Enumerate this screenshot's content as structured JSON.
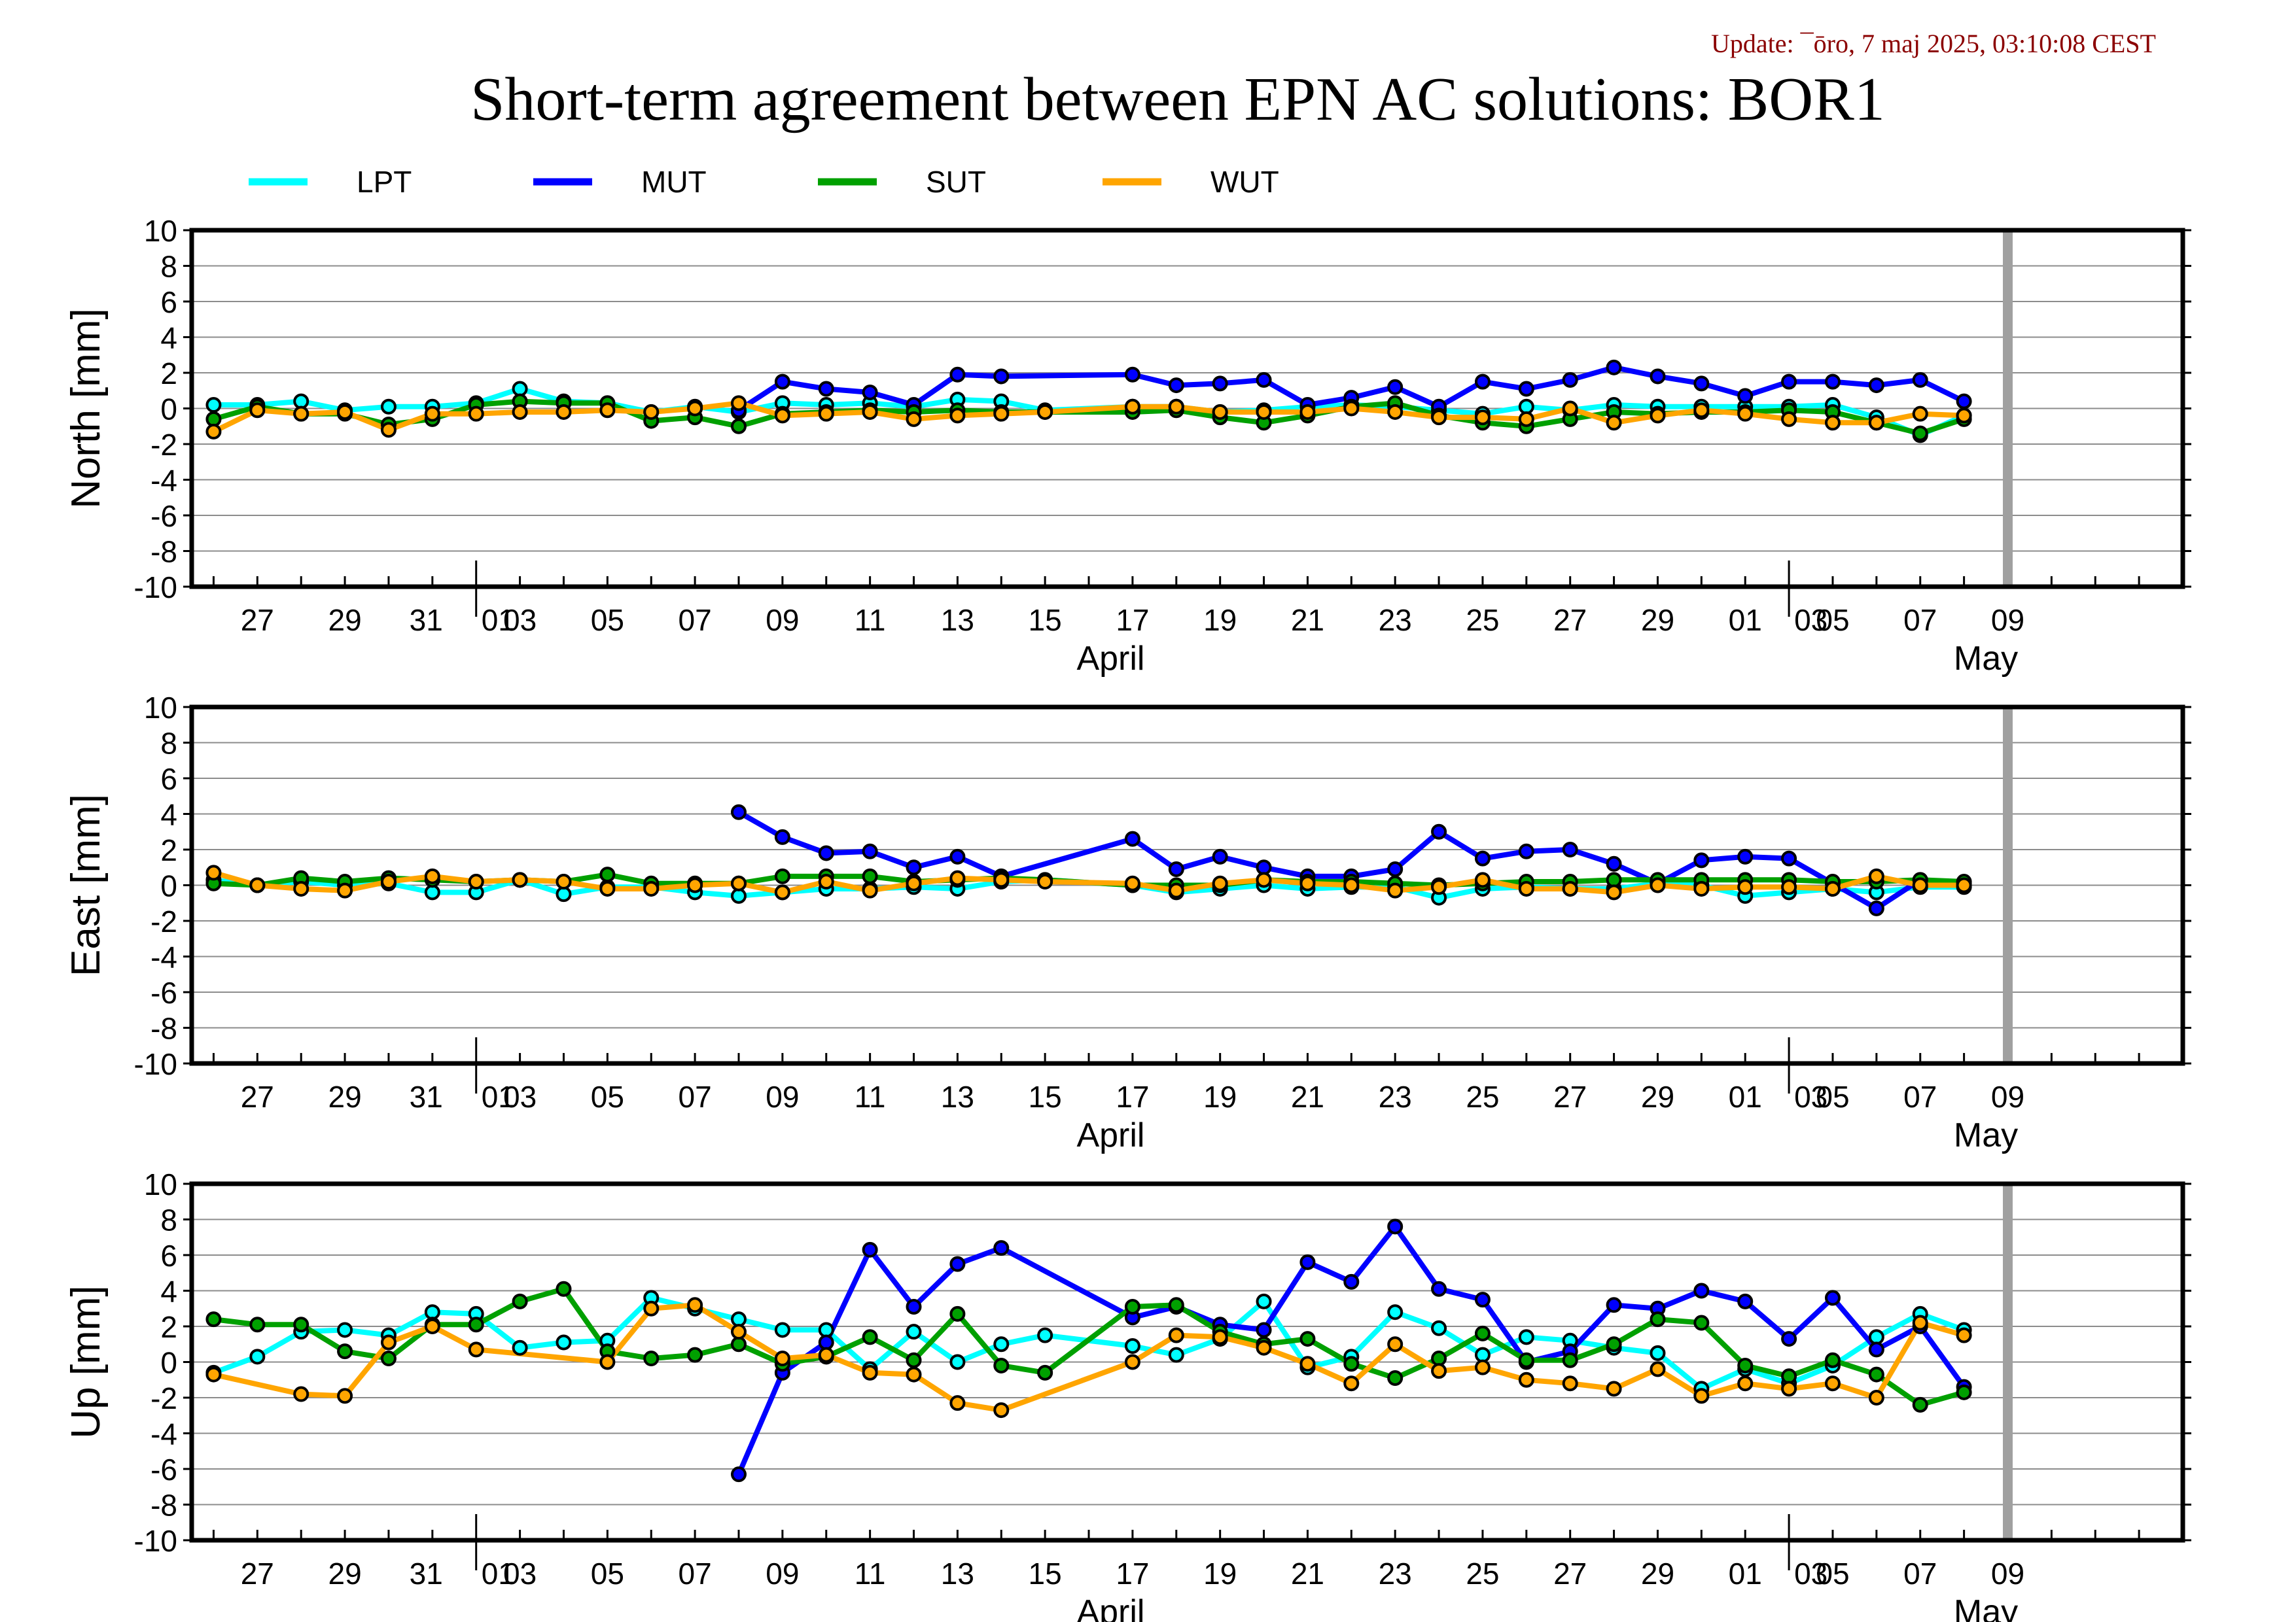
{
  "update": "Update: ¯ōro, 7 maj 2025, 03:10:08 CEST",
  "title": "Short-term agreement between EPN AC solutions: BOR1",
  "colors": {
    "LPT": "#00ffff",
    "MUT": "#0000ff",
    "SUT": "#00a000",
    "WUT": "#ffa500",
    "vline": "#a0a0a0",
    "update_text": "#8b0000"
  },
  "legend": [
    {
      "name": "LPT"
    },
    {
      "name": "MUT"
    },
    {
      "name": "SUT"
    },
    {
      "name": "WUT"
    }
  ],
  "chart_data": [
    {
      "type": "line",
      "ylabel": "North [mm]",
      "ylim": [
        -10,
        10
      ],
      "yticks": [
        10,
        8,
        6,
        4,
        2,
        0,
        -2,
        -4,
        -6,
        -8,
        -10
      ],
      "xlim": [
        "2025-03-25T12",
        "2025-05-10"
      ],
      "xticks": [
        "27",
        "29",
        "31",
        "01",
        "03",
        "05",
        "07",
        "09",
        "11",
        "13",
        "15",
        "17",
        "19",
        "21",
        "23",
        "25",
        "27",
        "29",
        "01",
        "03",
        "05",
        "07",
        "09"
      ],
      "months": [
        "April",
        "May"
      ],
      "grid": true,
      "marker_line": "2025-05-06",
      "x": [
        "2025-03-26",
        "2025-03-27",
        "2025-03-28",
        "2025-03-29",
        "2025-03-30",
        "2025-03-31",
        "2025-04-01",
        "2025-04-02",
        "2025-04-03",
        "2025-04-04",
        "2025-04-05",
        "2025-04-06",
        "2025-04-07",
        "2025-04-08",
        "2025-04-09",
        "2025-04-10",
        "2025-04-11",
        "2025-04-12",
        "2025-04-13",
        "2025-04-14",
        "2025-04-16",
        "2025-04-17",
        "2025-04-18",
        "2025-04-19",
        "2025-04-20",
        "2025-04-21",
        "2025-04-22",
        "2025-04-23",
        "2025-04-24",
        "2025-04-25",
        "2025-04-26",
        "2025-04-27",
        "2025-04-28",
        "2025-04-29",
        "2025-04-30",
        "2025-05-01",
        "2025-05-02",
        "2025-05-03",
        "2025-05-04",
        "2025-05-05"
      ],
      "series": [
        {
          "name": "LPT",
          "values": [
            0.2,
            0.2,
            0.4,
            -0.1,
            0.1,
            0.1,
            0.3,
            1.1,
            0.4,
            0.3,
            -0.2,
            0.1,
            -0.2,
            0.3,
            0.2,
            0.3,
            0.1,
            0.5,
            0.4,
            -0.1,
            0.1,
            0.1,
            -0.2,
            -0.1,
            0.1,
            0.2,
            0.1,
            -0.1,
            -0.3,
            0.1,
            -0.1,
            0.2,
            0.1,
            0.1,
            0.1,
            0.1,
            0.2,
            -0.5,
            -1.5,
            -0.4
          ]
        },
        {
          "name": "MUT",
          "values": [
            null,
            null,
            null,
            null,
            null,
            null,
            null,
            null,
            null,
            null,
            null,
            null,
            -0.1,
            1.5,
            1.1,
            0.9,
            0.2,
            1.9,
            1.8,
            null,
            1.9,
            1.3,
            1.4,
            1.6,
            0.2,
            0.6,
            1.2,
            0.1,
            1.5,
            1.1,
            1.6,
            2.3,
            1.8,
            1.4,
            0.7,
            1.5,
            1.5,
            1.3,
            1.6,
            0.4
          ]
        },
        {
          "name": "SUT",
          "values": [
            -0.6,
            0.1,
            -0.3,
            -0.3,
            -0.9,
            -0.6,
            0.2,
            0.4,
            0.3,
            0.3,
            -0.7,
            -0.5,
            -1.0,
            -0.3,
            -0.2,
            -0.1,
            -0.2,
            -0.1,
            -0.2,
            -0.2,
            -0.2,
            -0.1,
            -0.5,
            -0.8,
            -0.4,
            0.1,
            0.3,
            -0.4,
            -0.8,
            -1.0,
            -0.6,
            -0.2,
            -0.3,
            -0.2,
            -0.2,
            -0.1,
            -0.2,
            -0.8,
            -1.4,
            -0.6
          ]
        },
        {
          "name": "WUT",
          "values": [
            -1.3,
            -0.1,
            -0.3,
            -0.2,
            -1.2,
            -0.3,
            -0.3,
            -0.2,
            -0.2,
            -0.1,
            -0.2,
            0.0,
            0.3,
            -0.4,
            -0.3,
            -0.2,
            -0.6,
            -0.4,
            -0.3,
            -0.2,
            0.1,
            0.1,
            -0.2,
            -0.2,
            -0.2,
            0.0,
            -0.2,
            -0.5,
            -0.5,
            -0.6,
            0.0,
            -0.8,
            -0.4,
            -0.1,
            -0.3,
            -0.6,
            -0.8,
            -0.8,
            -0.3,
            -0.4
          ]
        }
      ]
    },
    {
      "type": "line",
      "ylabel": "East [mm]",
      "ylim": [
        -10,
        10
      ],
      "yticks": [
        10,
        8,
        6,
        4,
        2,
        0,
        -2,
        -4,
        -6,
        -8,
        -10
      ],
      "xlim": [
        "2025-03-25T12",
        "2025-05-10"
      ],
      "xticks": [
        "27",
        "29",
        "31",
        "01",
        "03",
        "05",
        "07",
        "09",
        "11",
        "13",
        "15",
        "17",
        "19",
        "21",
        "23",
        "25",
        "27",
        "29",
        "01",
        "03",
        "05",
        "07",
        "09"
      ],
      "months": [
        "April",
        "May"
      ],
      "grid": true,
      "marker_line": "2025-05-06",
      "x": [
        "2025-03-26",
        "2025-03-27",
        "2025-03-28",
        "2025-03-29",
        "2025-03-30",
        "2025-03-31",
        "2025-04-01",
        "2025-04-02",
        "2025-04-03",
        "2025-04-04",
        "2025-04-05",
        "2025-04-06",
        "2025-04-07",
        "2025-04-08",
        "2025-04-09",
        "2025-04-10",
        "2025-04-11",
        "2025-04-12",
        "2025-04-13",
        "2025-04-14",
        "2025-04-16",
        "2025-04-17",
        "2025-04-18",
        "2025-04-19",
        "2025-04-20",
        "2025-04-21",
        "2025-04-22",
        "2025-04-23",
        "2025-04-24",
        "2025-04-25",
        "2025-04-26",
        "2025-04-27",
        "2025-04-28",
        "2025-04-29",
        "2025-04-30",
        "2025-05-01",
        "2025-05-02",
        "2025-05-03",
        "2025-05-04",
        "2025-05-05"
      ],
      "series": [
        {
          "name": "LPT",
          "values": [
            0.3,
            0.0,
            0.2,
            0.0,
            0.1,
            -0.4,
            -0.4,
            0.3,
            -0.5,
            -0.1,
            -0.1,
            -0.4,
            -0.6,
            -0.4,
            -0.2,
            -0.2,
            -0.1,
            -0.2,
            0.2,
            0.3,
            0.0,
            -0.4,
            -0.2,
            0.0,
            -0.2,
            -0.1,
            -0.1,
            -0.7,
            -0.2,
            -0.1,
            -0.2,
            -0.2,
            0.1,
            0.0,
            -0.6,
            -0.4,
            -0.2,
            -0.4,
            -0.1,
            -0.1
          ]
        },
        {
          "name": "MUT",
          "values": [
            null,
            null,
            null,
            null,
            null,
            null,
            null,
            null,
            null,
            null,
            null,
            null,
            4.1,
            2.7,
            1.8,
            1.9,
            1.0,
            1.6,
            0.5,
            null,
            2.6,
            0.9,
            1.6,
            1.0,
            0.5,
            0.5,
            0.9,
            3.0,
            1.5,
            1.9,
            2.0,
            1.2,
            0.1,
            1.4,
            1.6,
            1.5,
            0.1,
            -1.3,
            0.3,
            0.1
          ]
        },
        {
          "name": "SUT",
          "values": [
            0.1,
            0.0,
            0.4,
            0.2,
            0.4,
            0.3,
            0.2,
            0.3,
            0.2,
            0.6,
            0.1,
            0.1,
            0.1,
            0.5,
            0.5,
            0.5,
            0.2,
            0.3,
            0.4,
            0.3,
            0.0,
            0.0,
            0.0,
            0.3,
            0.2,
            0.2,
            0.1,
            0.0,
            0.1,
            0.2,
            0.2,
            0.3,
            0.3,
            0.3,
            0.3,
            0.3,
            0.2,
            0.2,
            0.3,
            0.2
          ]
        },
        {
          "name": "WUT",
          "values": [
            0.7,
            0.0,
            -0.2,
            -0.3,
            0.2,
            0.5,
            0.2,
            0.3,
            0.2,
            -0.2,
            -0.2,
            0.0,
            0.1,
            -0.4,
            0.2,
            -0.3,
            0.1,
            0.4,
            0.3,
            0.2,
            0.1,
            -0.3,
            0.1,
            0.3,
            0.1,
            0.0,
            -0.3,
            -0.1,
            0.3,
            -0.2,
            -0.2,
            -0.4,
            0.0,
            -0.2,
            -0.1,
            -0.1,
            -0.2,
            0.5,
            0.0,
            0.0
          ]
        }
      ]
    },
    {
      "type": "line",
      "ylabel": "Up [mm]",
      "ylim": [
        -10,
        10
      ],
      "yticks": [
        10,
        8,
        6,
        4,
        2,
        0,
        -2,
        -4,
        -6,
        -8,
        -10
      ],
      "xlim": [
        "2025-03-25T12",
        "2025-05-10"
      ],
      "xticks": [
        "27",
        "29",
        "31",
        "01",
        "03",
        "05",
        "07",
        "09",
        "11",
        "13",
        "15",
        "17",
        "19",
        "21",
        "23",
        "25",
        "27",
        "29",
        "01",
        "03",
        "05",
        "07",
        "09"
      ],
      "months": [
        "April",
        "May"
      ],
      "grid": true,
      "marker_line": "2025-05-06",
      "x": [
        "2025-03-26",
        "2025-03-27",
        "2025-03-28",
        "2025-03-29",
        "2025-03-30",
        "2025-03-31",
        "2025-04-01",
        "2025-04-02",
        "2025-04-03",
        "2025-04-04",
        "2025-04-05",
        "2025-04-06",
        "2025-04-07",
        "2025-04-08",
        "2025-04-09",
        "2025-04-10",
        "2025-04-11",
        "2025-04-12",
        "2025-04-13",
        "2025-04-14",
        "2025-04-16",
        "2025-04-17",
        "2025-04-18",
        "2025-04-19",
        "2025-04-20",
        "2025-04-21",
        "2025-04-22",
        "2025-04-23",
        "2025-04-24",
        "2025-04-25",
        "2025-04-26",
        "2025-04-27",
        "2025-04-28",
        "2025-04-29",
        "2025-04-30",
        "2025-05-01",
        "2025-05-02",
        "2025-05-03",
        "2025-05-04",
        "2025-05-05"
      ],
      "series": [
        {
          "name": "LPT",
          "values": [
            -0.6,
            0.3,
            1.7,
            1.8,
            1.5,
            2.8,
            2.7,
            0.8,
            1.1,
            1.2,
            3.6,
            3.0,
            2.4,
            1.8,
            1.8,
            -0.4,
            1.7,
            0.0,
            1.0,
            1.5,
            0.9,
            0.4,
            1.3,
            3.4,
            -0.3,
            0.3,
            2.8,
            1.9,
            0.4,
            1.4,
            1.2,
            0.8,
            0.5,
            -1.5,
            -0.4,
            -1.2,
            -0.2,
            1.4,
            2.7,
            1.8
          ]
        },
        {
          "name": "MUT",
          "values": [
            null,
            null,
            null,
            null,
            null,
            null,
            null,
            null,
            null,
            null,
            null,
            null,
            -6.3,
            -0.6,
            1.1,
            6.3,
            3.1,
            5.5,
            6.4,
            null,
            2.5,
            3.1,
            2.1,
            1.8,
            5.6,
            4.5,
            7.6,
            4.1,
            3.5,
            0.0,
            0.6,
            3.2,
            3.0,
            4.0,
            3.4,
            1.3,
            3.6,
            0.7,
            2.0,
            -1.4
          ]
        },
        {
          "name": "SUT",
          "values": [
            2.4,
            2.1,
            2.1,
            0.6,
            0.2,
            2.1,
            2.1,
            3.4,
            4.1,
            0.6,
            0.2,
            0.4,
            1.0,
            -0.1,
            0.3,
            1.4,
            0.1,
            2.7,
            -0.2,
            -0.6,
            3.1,
            3.2,
            1.7,
            1.0,
            1.3,
            -0.1,
            -0.9,
            0.2,
            1.6,
            0.1,
            0.1,
            1.0,
            2.4,
            2.2,
            -0.2,
            -0.8,
            0.1,
            -0.7,
            -2.4,
            -1.7
          ]
        },
        {
          "name": "WUT",
          "values": [
            -0.7,
            null,
            -1.8,
            -1.9,
            1.1,
            2.0,
            0.7,
            null,
            null,
            0.0,
            3.0,
            3.2,
            1.7,
            0.2,
            0.4,
            -0.6,
            -0.7,
            -2.3,
            -2.7,
            null,
            0.0,
            1.5,
            1.4,
            0.8,
            -0.1,
            -1.2,
            1.0,
            -0.5,
            -0.3,
            -1.0,
            -1.2,
            -1.5,
            -0.4,
            -1.9,
            -1.2,
            -1.5,
            -1.2,
            -2.0,
            2.2,
            1.5
          ]
        }
      ]
    }
  ]
}
